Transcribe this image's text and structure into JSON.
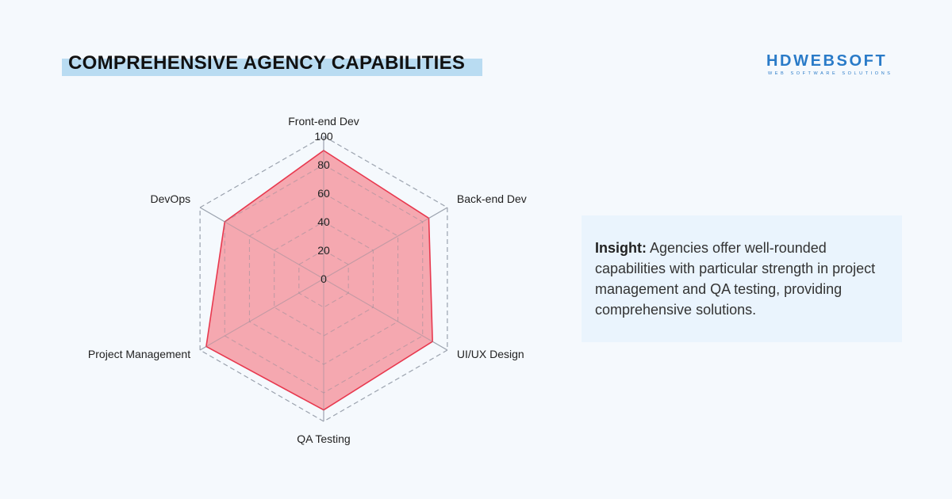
{
  "header": {
    "title": "COMPREHENSIVE AGENCY CAPABILITIES"
  },
  "logo": {
    "name": "HDWEBSOFT",
    "tagline": "WEB SOFTWARE SOLUTIONS",
    "color": "#2a7bc8"
  },
  "insight": {
    "label": "Insight:",
    "text": " Agencies offer well-rounded capabilities with particular strength in project management and QA testing, providing comprehensive solutions."
  },
  "chart_data": {
    "type": "radar",
    "categories": [
      "Front-end Dev",
      "Back-end Dev",
      "UI/UX Design",
      "QA Testing",
      "Project Management",
      "DevOps"
    ],
    "series": [
      {
        "values": [
          90,
          85,
          88,
          92,
          95,
          80
        ],
        "color": "#e8394f",
        "fill": "#f4a3ac"
      }
    ],
    "rlim": [
      0,
      100
    ],
    "ticks": [
      0,
      20,
      40,
      60,
      80,
      100
    ],
    "grid": true
  }
}
